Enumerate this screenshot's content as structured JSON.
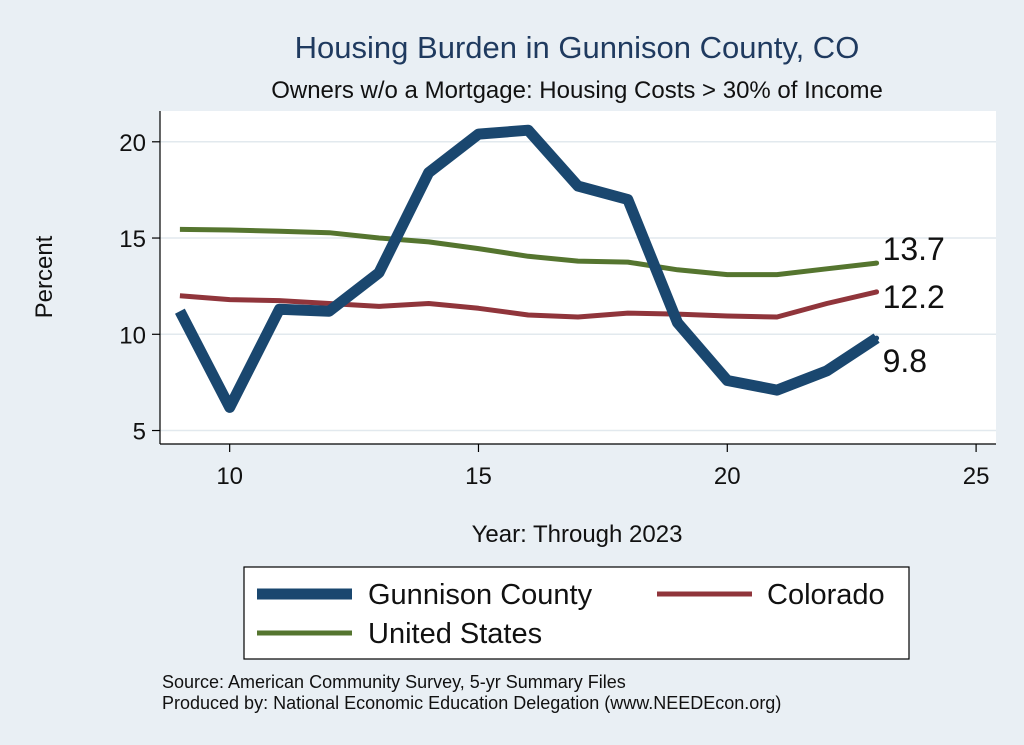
{
  "chart_data": {
    "type": "line",
    "title": "Housing Burden in Gunnison County, CO",
    "subtitle": "Owners w/o a Mortgage: Housing Costs > 30% of Income",
    "xlabel": "Year: Through 2023",
    "ylabel": "Percent",
    "xlim": [
      8.6,
      25.4
    ],
    "ylim": [
      4.3,
      21.6
    ],
    "x_ticks": [
      10,
      15,
      20,
      25
    ],
    "y_ticks": [
      5,
      10,
      15,
      20
    ],
    "grid": true,
    "legend_position": "bottom",
    "x": [
      9,
      10,
      11,
      12,
      13,
      14,
      15,
      16,
      17,
      18,
      19,
      20,
      21,
      22,
      23
    ],
    "series": [
      {
        "name": "Gunnison County",
        "color": "#1a476f",
        "values": [
          11.2,
          6.2,
          11.3,
          11.2,
          13.2,
          18.4,
          20.4,
          20.6,
          17.7,
          17.0,
          10.6,
          7.6,
          7.1,
          8.1,
          9.8
        ],
        "end_label": "9.8"
      },
      {
        "name": "Colorado",
        "color": "#90353b",
        "values": [
          12.0,
          11.8,
          11.75,
          11.6,
          11.45,
          11.6,
          11.35,
          11.0,
          10.9,
          11.1,
          11.05,
          10.95,
          10.9,
          11.6,
          12.2
        ],
        "end_label": "12.2"
      },
      {
        "name": "United States",
        "color": "#55752f",
        "values": [
          15.45,
          15.42,
          15.35,
          15.28,
          15.0,
          14.8,
          14.45,
          14.05,
          13.8,
          13.75,
          13.35,
          13.1,
          13.1,
          13.4,
          13.7
        ],
        "end_label": "13.7"
      }
    ],
    "notes": [
      "Source: American Community Survey, 5-yr Summary Files",
      "Produced by: National Economic Education Delegation (www.NEEDEcon.org)"
    ]
  }
}
